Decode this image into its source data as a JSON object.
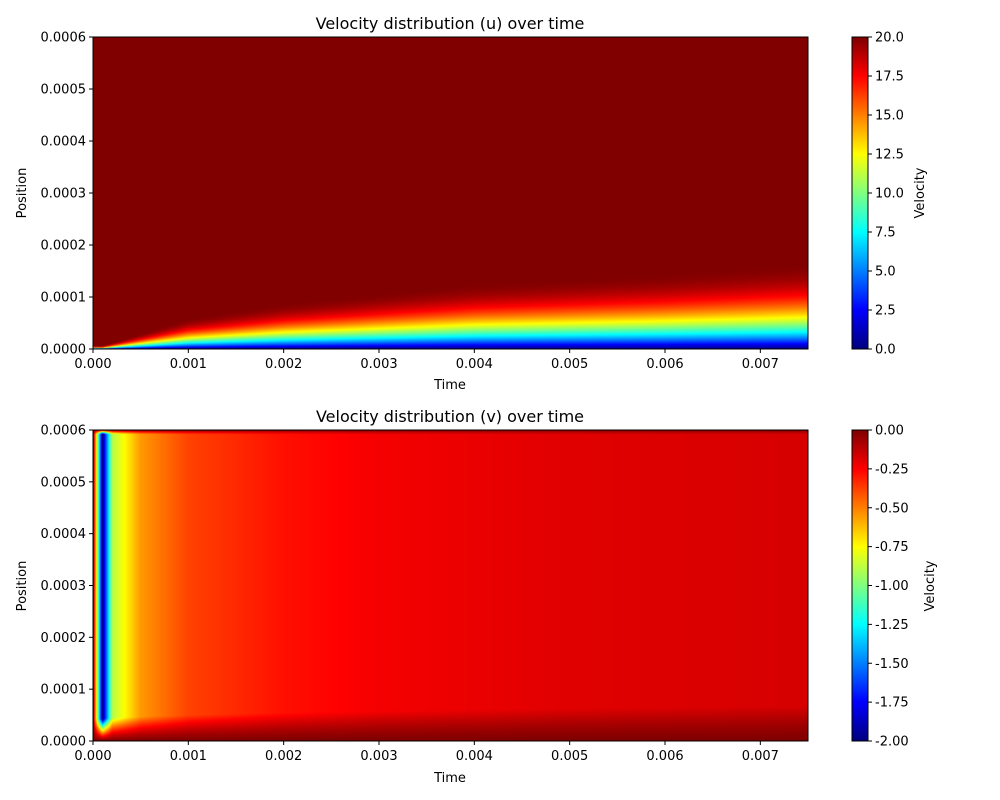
{
  "chart_data": [
    {
      "type": "heatmap",
      "title": "Velocity distribution (u) over time",
      "xlabel": "Time",
      "ylabel": "Position",
      "colorbar_label": "Velocity",
      "colormap": "jet",
      "xlim": [
        0.0,
        0.0075
      ],
      "ylim": [
        0.0,
        0.0006
      ],
      "clim": [
        0.0,
        20.0
      ],
      "x_ticks": [
        "0.000",
        "0.001",
        "0.002",
        "0.003",
        "0.004",
        "0.005",
        "0.006",
        "0.007"
      ],
      "x_tick_values": [
        0.0,
        0.001,
        0.002,
        0.003,
        0.004,
        0.005,
        0.006,
        0.007
      ],
      "y_ticks": [
        "0.0000",
        "0.0001",
        "0.0002",
        "0.0003",
        "0.0004",
        "0.0005",
        "0.0006"
      ],
      "y_tick_values": [
        0.0,
        0.0001,
        0.0002,
        0.0003,
        0.0004,
        0.0005,
        0.0006
      ],
      "colorbar_ticks": [
        "0.0",
        "2.5",
        "5.0",
        "7.5",
        "10.0",
        "12.5",
        "15.0",
        "17.5",
        "20.0"
      ],
      "colorbar_tick_values": [
        0.0,
        2.5,
        5.0,
        7.5,
        10.0,
        12.5,
        15.0,
        17.5,
        20.0
      ],
      "field": "Boundary layer: u rises from 0.0 at Position 0 to 20.0 away from the wall; transition layer thickens with Time (about 0.00016 at Time 0.0075).",
      "layer_thickness_samples": {
        "time": [
          0.0,
          0.001,
          0.002,
          0.003,
          0.004,
          0.005,
          0.006,
          0.0075
        ],
        "u_reaches_20_position": [
          0.0,
          6e-05,
          9e-05,
          0.00011,
          0.00013,
          0.00014,
          0.00015,
          0.00017
        ]
      }
    },
    {
      "type": "heatmap",
      "title": "Velocity distribution (v) over time",
      "xlabel": "Time",
      "ylabel": "Position",
      "colorbar_label": "Velocity",
      "colormap": "jet",
      "xlim": [
        0.0,
        0.0075
      ],
      "ylim": [
        0.0,
        0.0006
      ],
      "clim": [
        -2.0,
        0.0
      ],
      "x_ticks": [
        "0.000",
        "0.001",
        "0.002",
        "0.003",
        "0.004",
        "0.005",
        "0.006",
        "0.007"
      ],
      "x_tick_values": [
        0.0,
        0.001,
        0.002,
        0.003,
        0.004,
        0.005,
        0.006,
        0.007
      ],
      "y_ticks": [
        "0.0000",
        "0.0001",
        "0.0002",
        "0.0003",
        "0.0004",
        "0.0005",
        "0.0006"
      ],
      "y_tick_values": [
        0.0,
        0.0001,
        0.0002,
        0.0003,
        0.0004,
        0.0005,
        0.0006
      ],
      "colorbar_ticks": [
        "-2.00",
        "-1.75",
        "-1.50",
        "-1.25",
        "-1.00",
        "-0.75",
        "-0.50",
        "-0.25",
        "0.00"
      ],
      "colorbar_tick_values": [
        -2.0,
        -1.75,
        -1.5,
        -1.25,
        -1.0,
        -0.75,
        -0.5,
        -0.25,
        0.0
      ],
      "field": "v near -2.0 at very early Time (about 0.0001), relaxing toward about -0.2 in the interior; 0.00 at Position 0 and near Position 0.0006.",
      "time_samples": [
        0.0001,
        0.0002,
        0.0005,
        0.001,
        0.002,
        0.003,
        0.005,
        0.0075
      ],
      "interior_v_samples": [
        -2.0,
        -0.9,
        -0.55,
        -0.38,
        -0.28,
        -0.23,
        -0.19,
        -0.17
      ]
    }
  ]
}
